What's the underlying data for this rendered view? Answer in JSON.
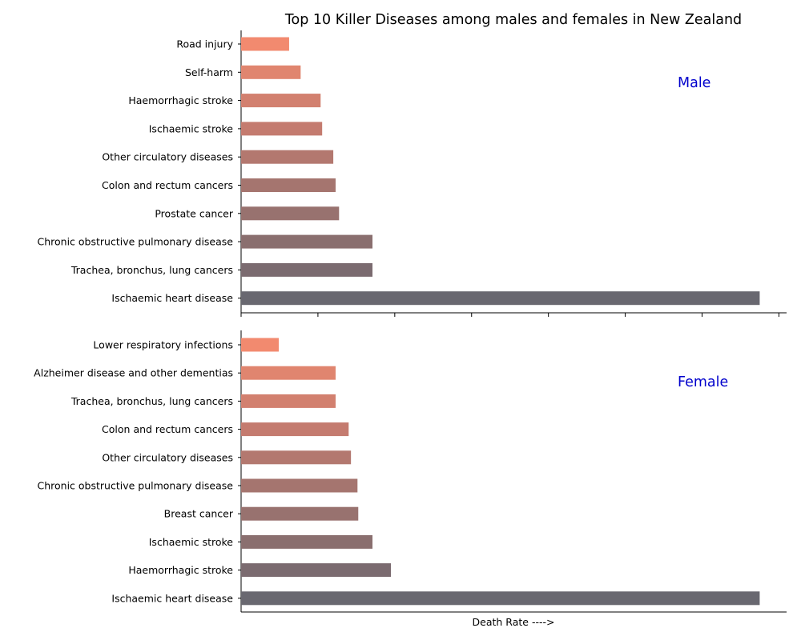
{
  "chart_data": {
    "type": "bar",
    "orientation": "horizontal",
    "title": "Top 10 Killer Diseases among males and females in New Zealand",
    "xlabel": "Death Rate ---->",
    "x_tick_labels_shown": false,
    "grid": false,
    "bar_colors": [
      "#f28a6f",
      "#e0856f",
      "#d2806f",
      "#c47b6f",
      "#b3786f",
      "#a5756f",
      "#98726f",
      "#8a6f6f",
      "#7b6b70",
      "#696870"
    ],
    "panels": [
      {
        "name": "Male",
        "categories": [
          "Road injury",
          "Self-harm",
          "Haemorrhagic stroke",
          "Ischaemic stroke",
          "Other circulatory diseases",
          "Colon and rectum cancers",
          "Prostate cancer",
          "Chronic obstructive pulmonary disease",
          "Trachea, bronchus, lung cancers",
          "Ischaemic heart disease"
        ],
        "values": [
          12.5,
          15.5,
          20.7,
          21.1,
          24.0,
          24.6,
          25.5,
          34.2,
          34.2,
          135.0
        ]
      },
      {
        "name": "Female",
        "categories": [
          "Lower respiratory infections",
          "Alzheimer disease and other dementias",
          "Trachea, bronchus, lung cancers",
          "Colon and rectum cancers",
          "Other circulatory diseases",
          "Chronic obstructive pulmonary disease",
          "Breast cancer",
          "Ischaemic stroke",
          "Haemorrhagic stroke",
          "Ischaemic heart disease"
        ],
        "values": [
          9.8,
          24.6,
          24.6,
          28.0,
          28.6,
          30.3,
          30.5,
          34.2,
          39.0,
          135.0
        ]
      }
    ],
    "xlim": [
      0,
      142
    ]
  }
}
